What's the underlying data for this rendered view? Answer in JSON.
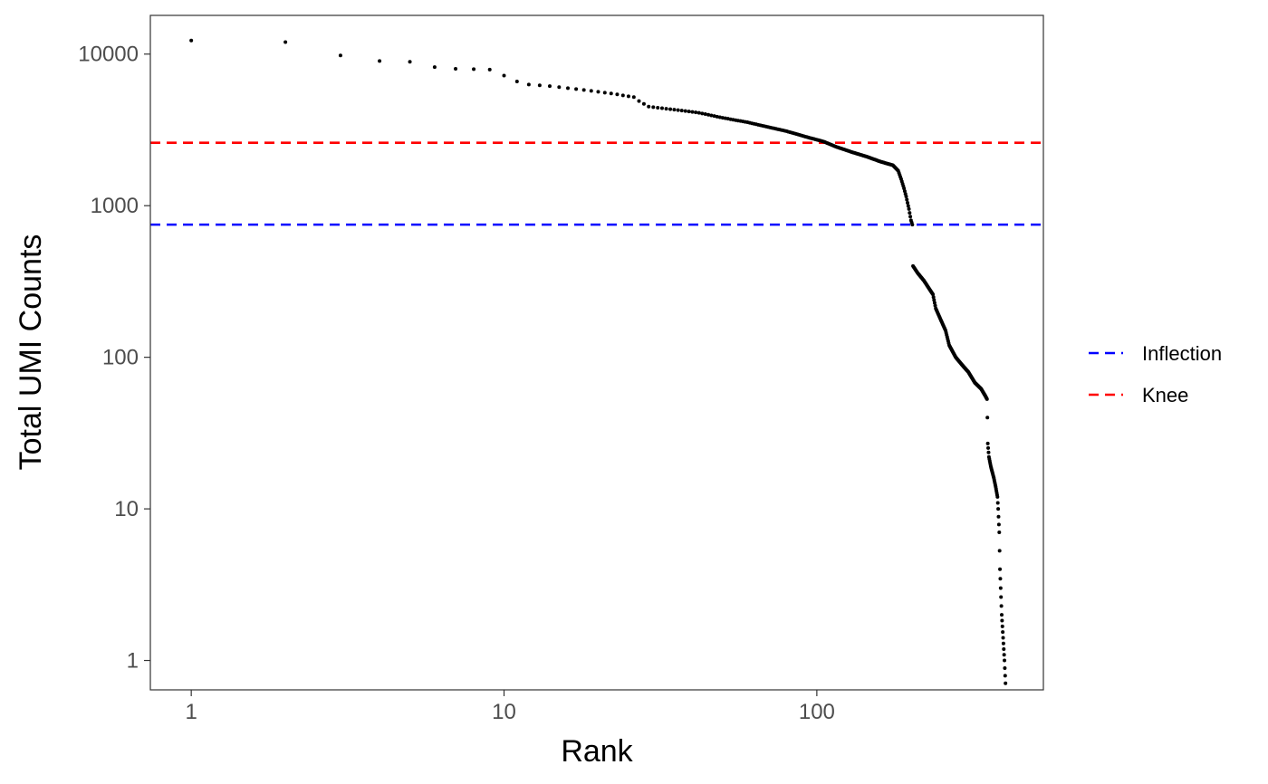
{
  "chart_data": {
    "type": "scatter",
    "xlabel": "Rank",
    "ylabel": "Total UMI Counts",
    "x_scale": "log10",
    "y_scale": "log10",
    "xlim": [
      0.74,
      530
    ],
    "ylim": [
      0.64,
      18000
    ],
    "grid": false,
    "legend_position": "right",
    "x_ticks": [
      {
        "value": 1,
        "label": "1"
      },
      {
        "value": 10,
        "label": "10"
      },
      {
        "value": 100,
        "label": "100"
      }
    ],
    "y_ticks": [
      {
        "value": 1,
        "label": "1"
      },
      {
        "value": 10,
        "label": "10"
      },
      {
        "value": 100,
        "label": "100"
      },
      {
        "value": 1000,
        "label": "1000"
      },
      {
        "value": 10000,
        "label": "10000"
      }
    ],
    "reference_lines": [
      {
        "name": "Inflection",
        "y": 750,
        "color": "#0000ff",
        "style": "dashed"
      },
      {
        "name": "Knee",
        "y": 2600,
        "color": "#ff0000",
        "style": "dashed"
      }
    ],
    "point_color": "#000000",
    "anchors": [
      [
        1,
        12300
      ],
      [
        2,
        12000
      ],
      [
        3,
        9800
      ],
      [
        4,
        9000
      ],
      [
        5,
        8900
      ],
      [
        6,
        8200
      ],
      [
        7,
        8000
      ],
      [
        8,
        7950
      ],
      [
        9,
        7900
      ],
      [
        9.6,
        7500
      ],
      [
        11,
        6600
      ],
      [
        12,
        6300
      ],
      [
        14,
        6150
      ],
      [
        18,
        5800
      ],
      [
        22,
        5500
      ],
      [
        26,
        5200
      ],
      [
        27,
        4900
      ],
      [
        29,
        4500
      ],
      [
        35,
        4300
      ],
      [
        42,
        4100
      ],
      [
        50,
        3800
      ],
      [
        60,
        3550
      ],
      [
        70,
        3300
      ],
      [
        80,
        3100
      ],
      [
        95,
        2800
      ],
      [
        105,
        2650
      ],
      [
        115,
        2450
      ],
      [
        130,
        2250
      ],
      [
        145,
        2100
      ],
      [
        160,
        1950
      ],
      [
        175,
        1850
      ],
      [
        182,
        1700
      ],
      [
        186,
        1500
      ],
      [
        190,
        1300
      ],
      [
        193,
        1150
      ],
      [
        197,
        950
      ],
      [
        200,
        800
      ],
      [
        202,
        750
      ],
      [
        203,
        400
      ],
      [
        210,
        360
      ],
      [
        220,
        320
      ],
      [
        235,
        260
      ],
      [
        240,
        210
      ],
      [
        248,
        180
      ],
      [
        258,
        150
      ],
      [
        265,
        120
      ],
      [
        278,
        100
      ],
      [
        290,
        90
      ],
      [
        305,
        80
      ],
      [
        320,
        68
      ],
      [
        335,
        62
      ],
      [
        345,
        56
      ],
      [
        350,
        53
      ],
      [
        351,
        40
      ],
      [
        352,
        27
      ],
      [
        355,
        22
      ],
      [
        360,
        19
      ],
      [
        368,
        16
      ],
      [
        373,
        14
      ],
      [
        378,
        12
      ],
      [
        380,
        10
      ],
      [
        383,
        7
      ],
      [
        385,
        4
      ],
      [
        387,
        3
      ],
      [
        390,
        2
      ],
      [
        398,
        1
      ],
      [
        402,
        0.63
      ]
    ],
    "point_count": 402
  }
}
